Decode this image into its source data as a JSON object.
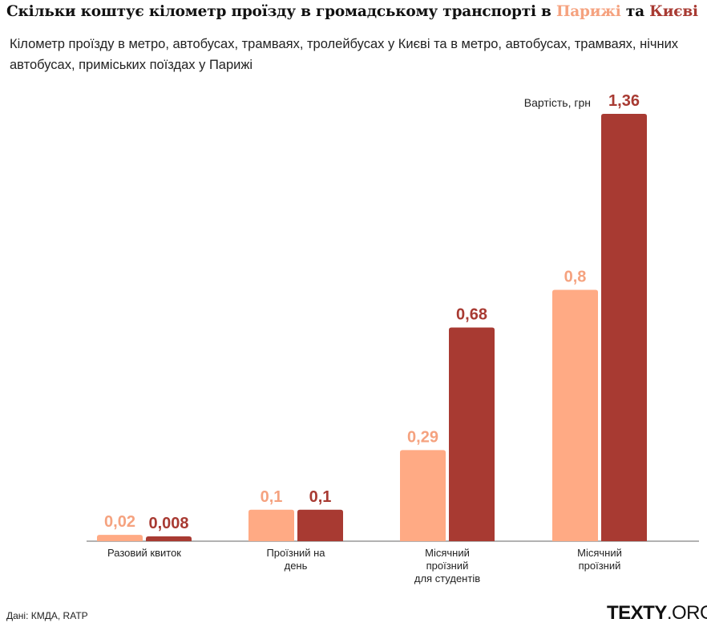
{
  "title": {
    "prefix": "Скільки коштує кілометр проїзду в громадському транспорті в ",
    "paris": "Парижі",
    "middle": " та ",
    "kyiv": "Києві"
  },
  "subtitle": "Кілометр проїзду в метро, автобусах, трамваях, тролейбусах у Києві та в метро, автобусах, трамваях, нічних автобусах, приміських поїздах у Парижі",
  "source": "Дані: КМДА, RATP",
  "logo": {
    "bold": "TEXTY",
    "rest": ".ORG.UA"
  },
  "chart_data": {
    "type": "bar",
    "title": "Скільки коштує кілометр проїзду в громадському транспорті в Парижі та Києві",
    "ylabel": "Вартість, грн",
    "categories": [
      [
        "Разовий квиток"
      ],
      [
        "Проїзний на",
        "день"
      ],
      [
        "Місячний",
        "проїзний",
        "для студентів"
      ],
      [
        "Місячний",
        "проїзний"
      ]
    ],
    "series": [
      {
        "name": "Парижі",
        "color": "#ffaa84",
        "label_color": "#f5a27f",
        "values": [
          0.02,
          0.1,
          0.29,
          0.8
        ],
        "labels": [
          "0,02",
          "0,1",
          "0,29",
          "0,8"
        ]
      },
      {
        "name": "Києві",
        "color": "#a83a32",
        "label_color": "#a83a32",
        "values": [
          0.008,
          0.1,
          0.68,
          1.36
        ],
        "labels": [
          "0,008",
          "0,1",
          "0,68",
          "1,36"
        ]
      }
    ],
    "ylim": [
      0,
      1.36
    ],
    "grid": false
  }
}
